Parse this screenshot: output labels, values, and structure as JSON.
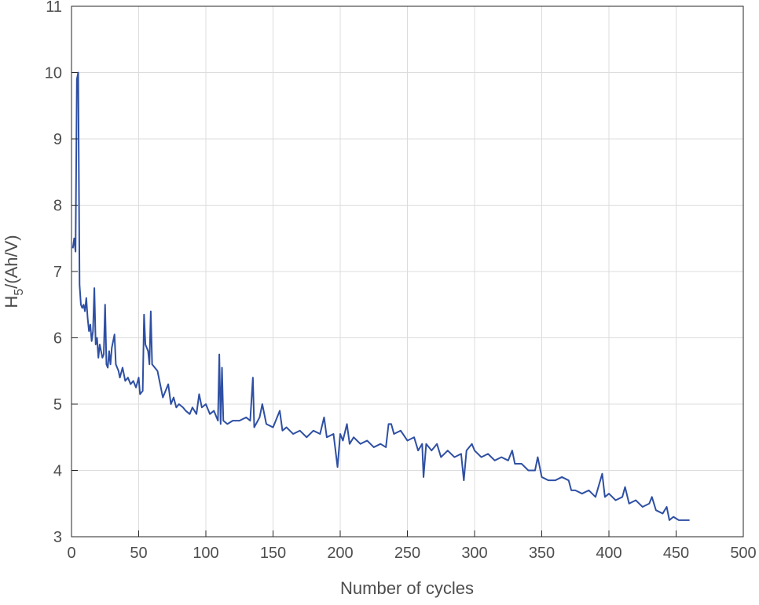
{
  "chart_data": {
    "type": "line",
    "xlabel": "Number of cycles",
    "ylabel_parts": [
      "H",
      "5",
      "/(Ah/V)"
    ],
    "xlim": [
      0,
      500
    ],
    "xticks": [
      0,
      50,
      100,
      150,
      200,
      250,
      300,
      350,
      400,
      450,
      500
    ],
    "ylim": [
      3,
      11
    ],
    "yticks": [
      3,
      4,
      5,
      6,
      7,
      8,
      9,
      10,
      11
    ],
    "grid": true,
    "series": [
      {
        "color": "#2e4fa3",
        "x": [
          1,
          2,
          3,
          4,
          5,
          6,
          7,
          8,
          9,
          10,
          11,
          12,
          13,
          14,
          15,
          16,
          17,
          18,
          19,
          20,
          21,
          22,
          23,
          24,
          25,
          26,
          27,
          28,
          29,
          30,
          32,
          33,
          35,
          36,
          38,
          40,
          42,
          44,
          46,
          48,
          50,
          51,
          53,
          54,
          55,
          57,
          58,
          59,
          60,
          62,
          64,
          66,
          68,
          70,
          72,
          74,
          76,
          78,
          80,
          83,
          85,
          88,
          90,
          93,
          95,
          97,
          100,
          103,
          106,
          109,
          110,
          111,
          112,
          113,
          116,
          120,
          125,
          130,
          133,
          135,
          136,
          140,
          142,
          145,
          150,
          155,
          157,
          160,
          165,
          170,
          175,
          180,
          185,
          188,
          190,
          195,
          198,
          200,
          202,
          205,
          207,
          210,
          215,
          220,
          225,
          230,
          234,
          236,
          238,
          240,
          245,
          250,
          255,
          258,
          261,
          262,
          264,
          268,
          272,
          275,
          280,
          285,
          290,
          292,
          294,
          298,
          300,
          305,
          310,
          315,
          320,
          325,
          328,
          330,
          335,
          340,
          345,
          347,
          350,
          355,
          360,
          365,
          370,
          372,
          375,
          380,
          385,
          390,
          395,
          397,
          400,
          405,
          410,
          412,
          415,
          420,
          425,
          430,
          432,
          435,
          440,
          443,
          445,
          448,
          452,
          456,
          460
        ],
        "values": [
          7.35,
          7.5,
          7.3,
          9.9,
          10.0,
          6.8,
          6.5,
          6.45,
          6.5,
          6.4,
          6.6,
          6.3,
          6.1,
          6.2,
          5.95,
          6.1,
          6.75,
          5.9,
          6.0,
          5.7,
          5.9,
          5.8,
          5.7,
          5.75,
          6.5,
          5.6,
          5.55,
          5.8,
          5.6,
          5.85,
          6.05,
          5.6,
          5.5,
          5.4,
          5.55,
          5.35,
          5.4,
          5.3,
          5.35,
          5.25,
          5.4,
          5.15,
          5.2,
          6.35,
          5.9,
          5.8,
          5.6,
          6.4,
          5.6,
          5.55,
          5.5,
          5.3,
          5.1,
          5.2,
          5.3,
          5.0,
          5.1,
          4.95,
          5.0,
          4.95,
          4.9,
          4.85,
          4.95,
          4.85,
          5.15,
          4.95,
          5.0,
          4.85,
          4.9,
          4.75,
          5.75,
          4.7,
          5.55,
          4.75,
          4.7,
          4.75,
          4.75,
          4.8,
          4.75,
          5.4,
          4.65,
          4.8,
          5.0,
          4.7,
          4.65,
          4.9,
          4.6,
          4.65,
          4.55,
          4.6,
          4.5,
          4.6,
          4.55,
          4.8,
          4.5,
          4.55,
          4.05,
          4.55,
          4.45,
          4.7,
          4.4,
          4.5,
          4.4,
          4.45,
          4.35,
          4.4,
          4.35,
          4.7,
          4.7,
          4.55,
          4.6,
          4.45,
          4.5,
          4.3,
          4.4,
          3.9,
          4.4,
          4.3,
          4.4,
          4.2,
          4.3,
          4.2,
          4.25,
          3.85,
          4.3,
          4.4,
          4.3,
          4.2,
          4.25,
          4.15,
          4.2,
          4.15,
          4.3,
          4.1,
          4.1,
          4.0,
          4.0,
          4.2,
          3.9,
          3.85,
          3.85,
          3.9,
          3.85,
          3.7,
          3.7,
          3.65,
          3.7,
          3.6,
          3.95,
          3.6,
          3.65,
          3.55,
          3.6,
          3.75,
          3.5,
          3.55,
          3.45,
          3.5,
          3.6,
          3.4,
          3.35,
          3.45,
          3.25,
          3.3,
          3.25,
          3.25,
          3.25
        ]
      }
    ]
  }
}
